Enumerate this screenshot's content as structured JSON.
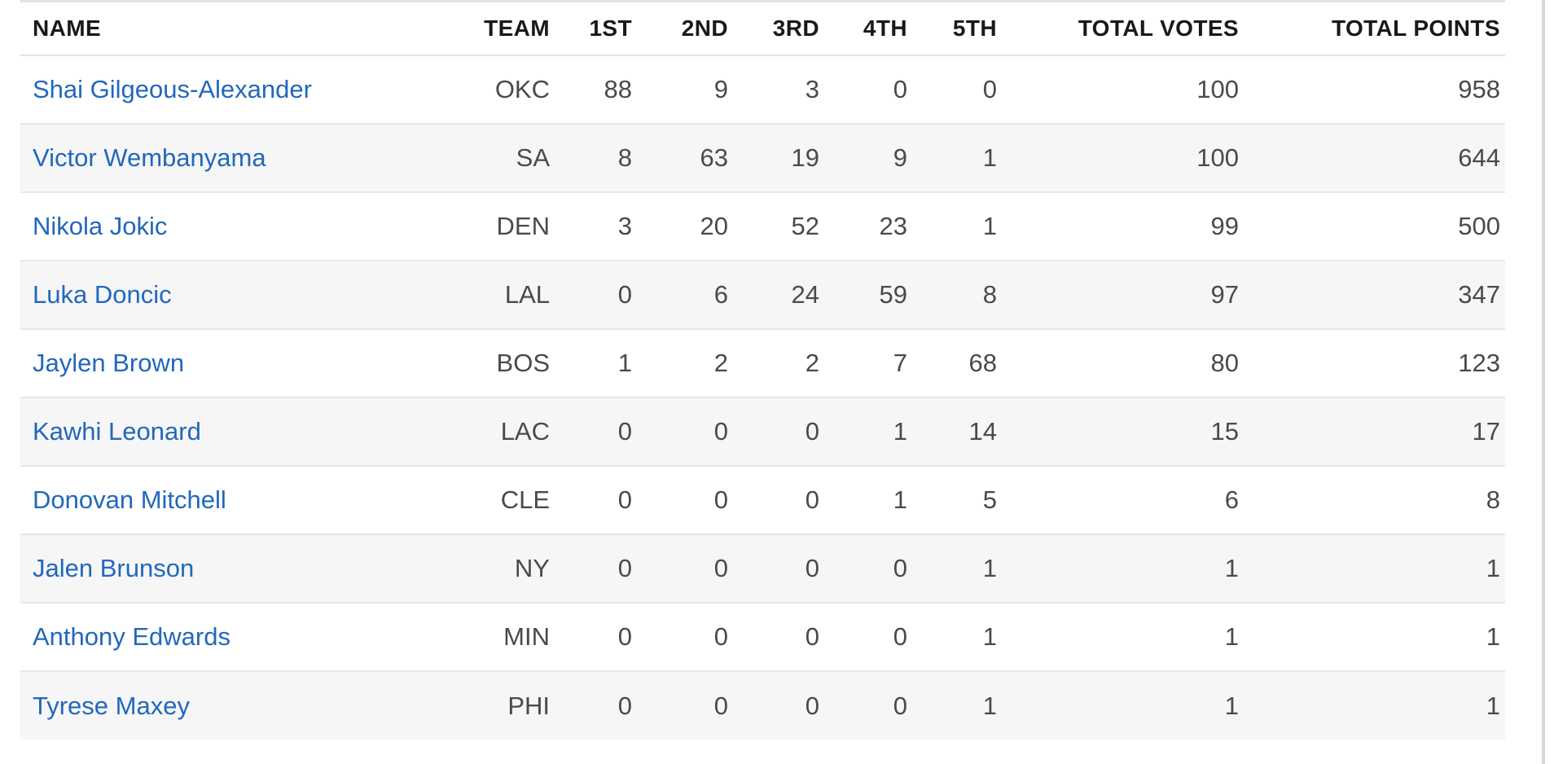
{
  "table": {
    "columns": [
      {
        "label": "NAME"
      },
      {
        "label": "TEAM"
      },
      {
        "label": "1ST"
      },
      {
        "label": "2ND"
      },
      {
        "label": "3RD"
      },
      {
        "label": "4TH"
      },
      {
        "label": "5TH"
      },
      {
        "label": "TOTAL VOTES"
      },
      {
        "label": "TOTAL POINTS"
      }
    ],
    "rows": [
      {
        "name": "Shai Gilgeous-Alexander",
        "team": "OKC",
        "first": 88,
        "second": 9,
        "third": 3,
        "fourth": 0,
        "fifth": 0,
        "total_votes": 100,
        "total_points": 958
      },
      {
        "name": "Victor Wembanyama",
        "team": "SA",
        "first": 8,
        "second": 63,
        "third": 19,
        "fourth": 9,
        "fifth": 1,
        "total_votes": 100,
        "total_points": 644
      },
      {
        "name": "Nikola Jokic",
        "team": "DEN",
        "first": 3,
        "second": 20,
        "third": 52,
        "fourth": 23,
        "fifth": 1,
        "total_votes": 99,
        "total_points": 500
      },
      {
        "name": "Luka Doncic",
        "team": "LAL",
        "first": 0,
        "second": 6,
        "third": 24,
        "fourth": 59,
        "fifth": 8,
        "total_votes": 97,
        "total_points": 347
      },
      {
        "name": "Jaylen Brown",
        "team": "BOS",
        "first": 1,
        "second": 2,
        "third": 2,
        "fourth": 7,
        "fifth": 68,
        "total_votes": 80,
        "total_points": 123
      },
      {
        "name": "Kawhi Leonard",
        "team": "LAC",
        "first": 0,
        "second": 0,
        "third": 0,
        "fourth": 1,
        "fifth": 14,
        "total_votes": 15,
        "total_points": 17
      },
      {
        "name": "Donovan Mitchell",
        "team": "CLE",
        "first": 0,
        "second": 0,
        "third": 0,
        "fourth": 1,
        "fifth": 5,
        "total_votes": 6,
        "total_points": 8
      },
      {
        "name": "Jalen Brunson",
        "team": "NY",
        "first": 0,
        "second": 0,
        "third": 0,
        "fourth": 0,
        "fifth": 1,
        "total_votes": 1,
        "total_points": 1
      },
      {
        "name": "Anthony Edwards",
        "team": "MIN",
        "first": 0,
        "second": 0,
        "third": 0,
        "fourth": 0,
        "fifth": 1,
        "total_votes": 1,
        "total_points": 1
      },
      {
        "name": "Tyrese Maxey",
        "team": "PHI",
        "first": 0,
        "second": 0,
        "third": 0,
        "fourth": 0,
        "fifth": 1,
        "total_votes": 1,
        "total_points": 1
      }
    ]
  },
  "colors": {
    "link_blue": "#2268bb",
    "row_stripe": "#f6f6f7",
    "divider": "#e6e7e8",
    "header_text": "#17191c",
    "cell_text": "#494a4c"
  }
}
